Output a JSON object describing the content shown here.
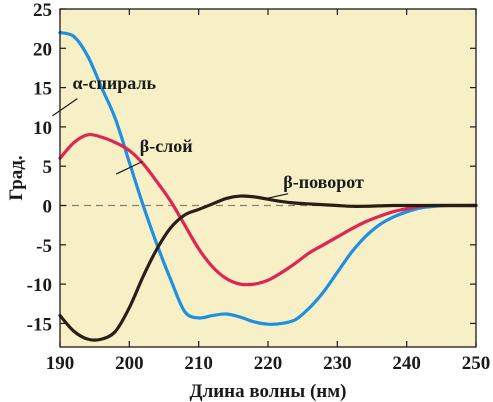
{
  "chart_data": {
    "type": "line",
    "title": "",
    "xlabel": "Длина волны (нм)",
    "ylabel": "Град.",
    "xlim": [
      190,
      250
    ],
    "ylim": [
      -18,
      25
    ],
    "xticks": [
      190,
      200,
      210,
      220,
      230,
      240,
      250
    ],
    "yticks": [
      25,
      20,
      15,
      10,
      5,
      0,
      -5,
      -10,
      -15
    ],
    "ytick_labels": [
      "25",
      "20",
      "15",
      "10",
      "5",
      "0",
      "-5",
      "-10",
      "-15"
    ],
    "grid": false,
    "legend": "none",
    "zero_line": "dashed",
    "colors": {
      "plot_background": "#f7efc6",
      "frame": "#1a1a1a",
      "zero_line": "#8a7f70"
    },
    "series": [
      {
        "name": "α-спираль",
        "color": "#1f8fe0",
        "label_at": [
          191.8,
          14.8
        ],
        "x": [
          190,
          192,
          194,
          196,
          198,
          200,
          202,
          204,
          206,
          208,
          210,
          212,
          214,
          216,
          218,
          220,
          222,
          224,
          226,
          228,
          230,
          232,
          234,
          236,
          238,
          240,
          242,
          244,
          246,
          248,
          250
        ],
        "y": [
          22,
          21.5,
          19,
          15,
          11,
          5.5,
          0,
          -5,
          -9.5,
          -13.5,
          -14.3,
          -14,
          -13.8,
          -14.2,
          -14.8,
          -15.1,
          -15,
          -14.5,
          -13,
          -11,
          -8.5,
          -6,
          -4,
          -2.5,
          -1.5,
          -0.8,
          -0.3,
          -0.1,
          0,
          0,
          0
        ]
      },
      {
        "name": "β-слой",
        "color": "#e02550",
        "label_at": [
          201.5,
          6.8
        ],
        "x": [
          190,
          192,
          194,
          196,
          198,
          200,
          202,
          204,
          206,
          208,
          210,
          212,
          214,
          216,
          218,
          220,
          222,
          224,
          226,
          228,
          230,
          232,
          234,
          236,
          238,
          240,
          242,
          244,
          246,
          248,
          250
        ],
        "y": [
          6,
          8,
          9,
          8.7,
          8,
          7,
          5.3,
          3,
          0.5,
          -2.5,
          -5.5,
          -7.8,
          -9.3,
          -10,
          -10,
          -9.5,
          -8.5,
          -7.3,
          -6,
          -5,
          -4,
          -3,
          -2.1,
          -1.4,
          -0.8,
          -0.4,
          -0.1,
          0,
          0,
          0,
          0
        ]
      },
      {
        "name": "β-поворот",
        "color": "#2a1f16",
        "label_at": [
          222.2,
          2.2
        ],
        "x": [
          190,
          192,
          194,
          196,
          198,
          200,
          202,
          204,
          206,
          208,
          210,
          212,
          214,
          216,
          218,
          220,
          222,
          224,
          226,
          228,
          230,
          232,
          234,
          236,
          238,
          240,
          242,
          244,
          246,
          248,
          250
        ],
        "y": [
          -14,
          -16,
          -17,
          -17,
          -16,
          -13,
          -9,
          -5.5,
          -2.8,
          -1.2,
          -0.5,
          0.2,
          0.9,
          1.2,
          1.1,
          0.8,
          0.5,
          0.3,
          0.2,
          0.1,
          0,
          -0.1,
          -0.1,
          -0.05,
          0,
          0,
          0,
          0,
          0,
          0,
          0
        ]
      }
    ]
  }
}
